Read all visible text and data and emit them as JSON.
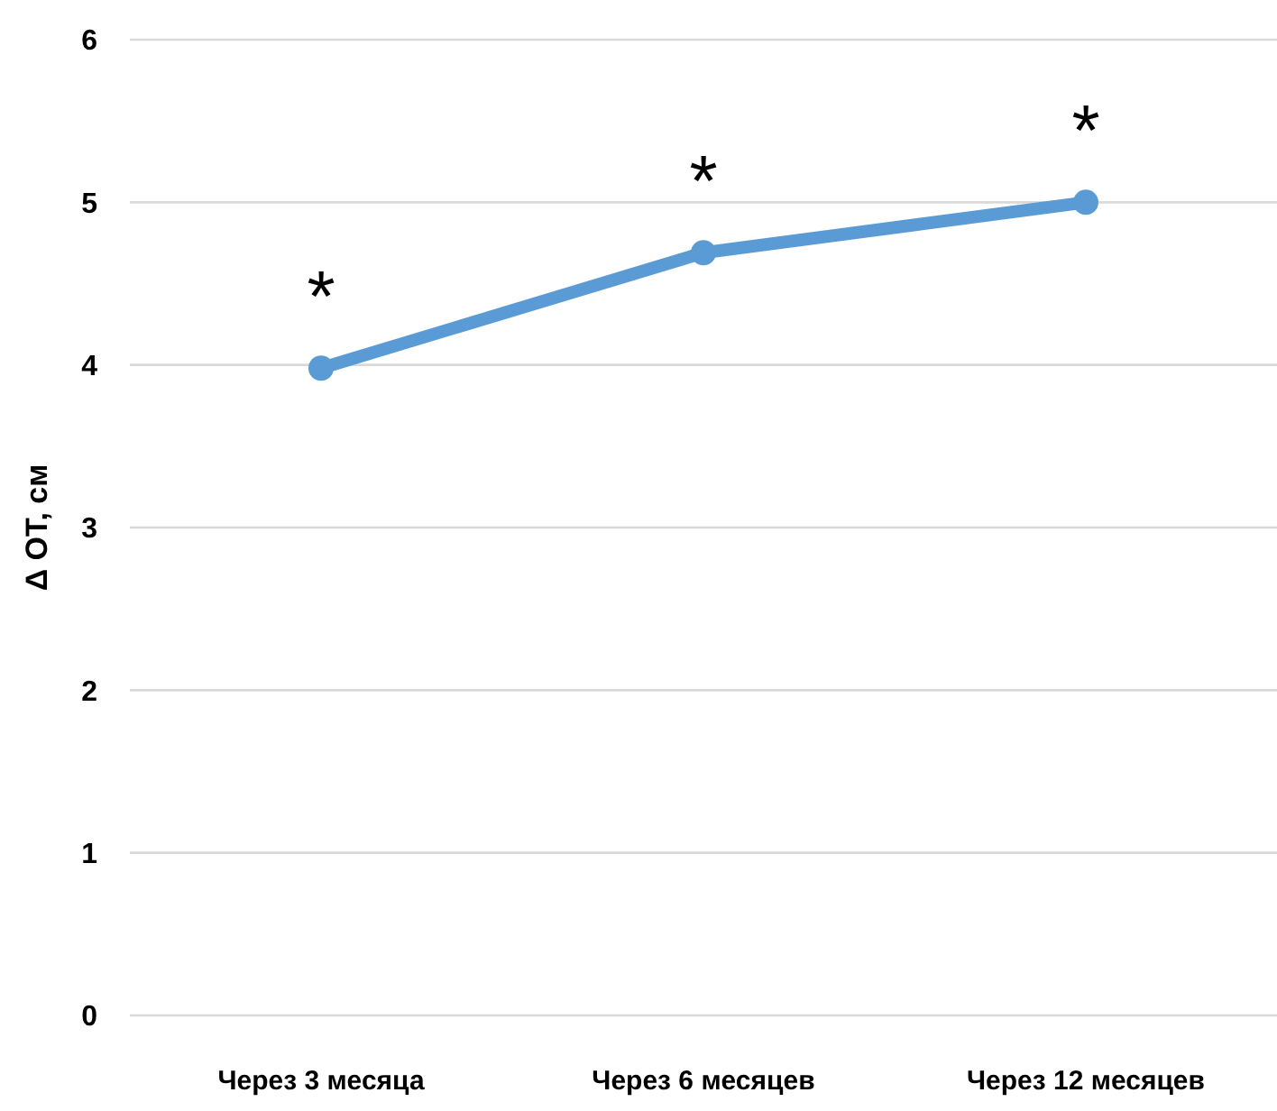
{
  "chart_data": {
    "type": "line",
    "ylabel": "Δ ОТ, см",
    "categories": [
      "Через 3 месяца",
      "Через 6 месяцев",
      "Через 12 месяцев"
    ],
    "series": [
      {
        "color": "#5b9bd5",
        "values": [
          3.98,
          4.69,
          5.0
        ]
      }
    ],
    "ylim": [
      0,
      6
    ],
    "yticks": [
      0,
      1,
      2,
      3,
      4,
      5,
      6
    ],
    "grid": "y",
    "marker": "circle",
    "annotations": [
      "*",
      "*",
      "*"
    ]
  }
}
